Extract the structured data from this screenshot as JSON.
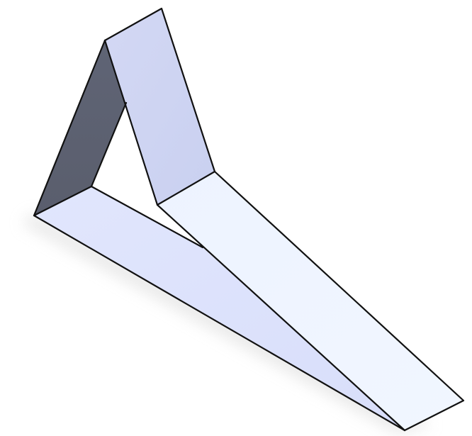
{
  "colors": {
    "background": "#ffffff",
    "edge": "#111111",
    "shadow": "#d9d9d9",
    "dark_inner_face": "#5c6070",
    "upright_face": "#cfd5f2",
    "top_face_light": "#eef4ff",
    "bottom_face": "#dde3fb"
  }
}
